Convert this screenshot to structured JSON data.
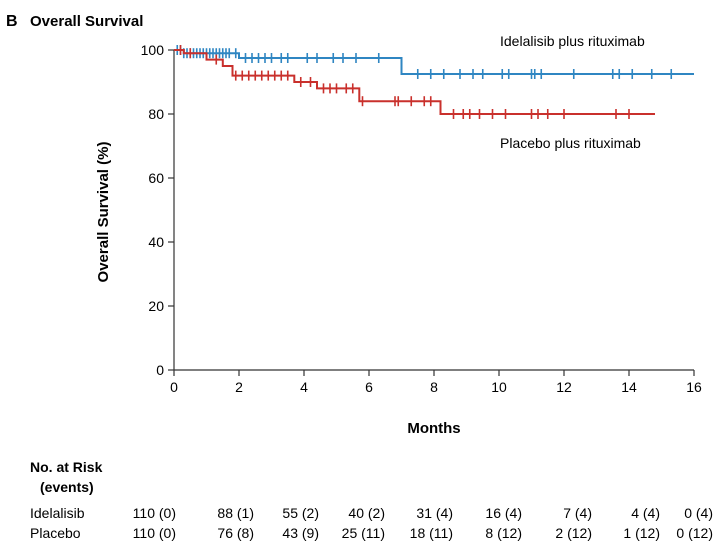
{
  "chart_data": {
    "type": "line",
    "panel_letter": "B",
    "title": "Overall Survival",
    "xlabel": "Months",
    "ylabel": "Overall Survival (%)",
    "xlim": [
      0,
      16
    ],
    "ylim": [
      0,
      100
    ],
    "x_ticks": [
      0,
      2,
      4,
      6,
      8,
      10,
      12,
      14,
      16
    ],
    "y_ticks": [
      0,
      20,
      40,
      60,
      80,
      100
    ],
    "grid": false,
    "series": [
      {
        "name": "Idelalisib plus rituximab",
        "color": "#2f86c2",
        "x": [
          0,
          0.3,
          0.3,
          2.0,
          2.0,
          7.0,
          7.0,
          16.0
        ],
        "y": [
          100,
          100,
          99,
          99,
          97.5,
          97.5,
          92.5,
          92.5
        ],
        "censored_x": [
          0.1,
          0.2,
          0.3,
          0.4,
          0.5,
          0.6,
          0.7,
          0.8,
          0.9,
          1.0,
          1.1,
          1.2,
          1.3,
          1.4,
          1.5,
          1.6,
          1.7,
          1.9,
          2.2,
          2.4,
          2.6,
          2.8,
          3.0,
          3.3,
          3.5,
          4.1,
          4.4,
          4.9,
          5.2,
          5.6,
          6.3,
          7.5,
          7.9,
          8.3,
          8.8,
          9.2,
          9.5,
          10.1,
          10.3,
          11.0,
          11.1,
          11.3,
          12.3,
          13.5,
          13.7,
          14.1,
          14.7,
          15.3
        ]
      },
      {
        "name": "Placebo plus rituximab",
        "color": "#c9302c",
        "x": [
          0,
          0.3,
          0.3,
          1.0,
          1.0,
          1.5,
          1.5,
          1.8,
          1.8,
          3.7,
          3.7,
          4.4,
          4.4,
          5.7,
          5.7,
          8.2,
          8.2,
          14.8
        ],
        "y": [
          100,
          100,
          99,
          99,
          97,
          97,
          95,
          95,
          92,
          92,
          90,
          90,
          88,
          88,
          84,
          84,
          80,
          80
        ],
        "censored_x": [
          0.2,
          0.5,
          1.3,
          1.9,
          2.1,
          2.3,
          2.5,
          2.7,
          2.9,
          3.1,
          3.3,
          3.5,
          3.9,
          4.2,
          4.6,
          4.8,
          5.0,
          5.3,
          5.5,
          5.8,
          6.8,
          6.9,
          7.3,
          7.7,
          7.9,
          8.6,
          8.9,
          9.1,
          9.4,
          9.8,
          10.2,
          11.0,
          11.2,
          11.5,
          12.0,
          13.6,
          14.0
        ]
      }
    ],
    "risk_table": {
      "header_line1": "No. at Risk",
      "header_line2": "(events)",
      "rows": [
        {
          "label": "Idelalisib",
          "values": [
            "110 (0)",
            "88 (1)",
            "55 (2)",
            "40 (2)",
            "31 (4)",
            "16 (4)",
            "7 (4)",
            "4 (4)",
            "0 (4)"
          ]
        },
        {
          "label": "Placebo",
          "values": [
            "110 (0)",
            "76 (8)",
            "43 (9)",
            "25 (11)",
            "18 (11)",
            "8 (12)",
            "2 (12)",
            "1 (12)",
            "0 (12)"
          ]
        }
      ]
    }
  }
}
